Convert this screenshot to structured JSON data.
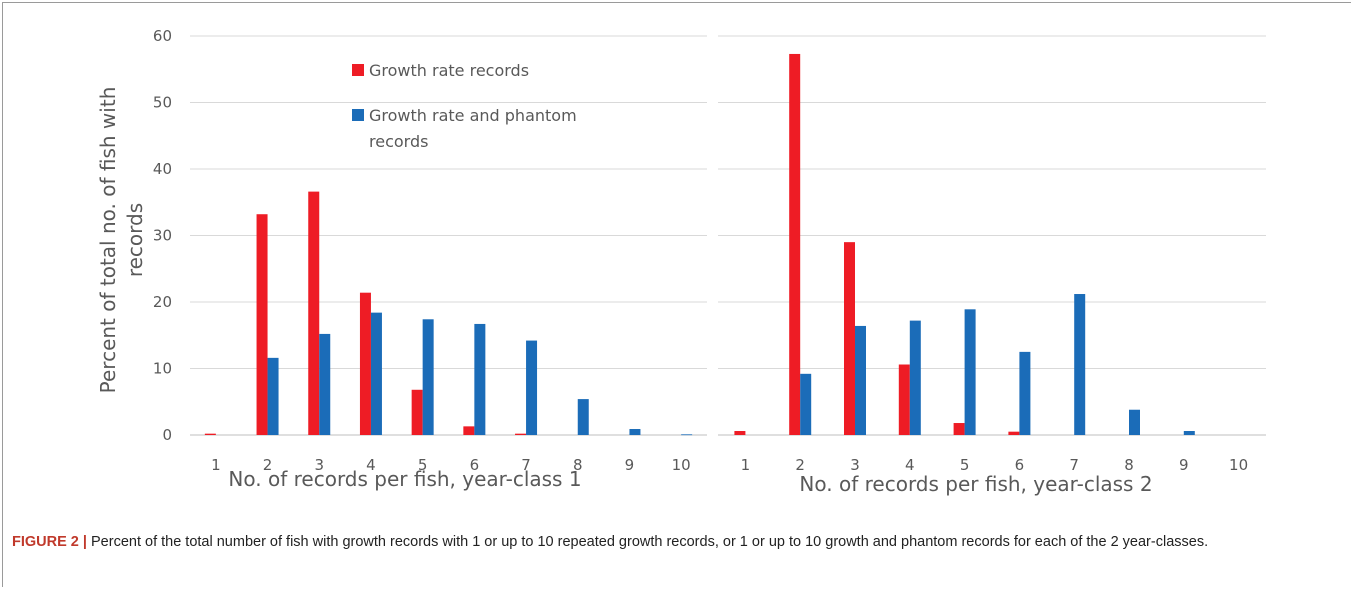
{
  "chart_data": [
    {
      "type": "bar",
      "xlabel": "No. of records per fish, year-class 1",
      "ylabel": "Percent of total no. of fish with records",
      "categories": [
        "1",
        "2",
        "3",
        "4",
        "5",
        "6",
        "7",
        "8",
        "9",
        "10"
      ],
      "ylim": [
        0,
        60
      ],
      "yticks": [
        0,
        10,
        20,
        30,
        40,
        50,
        60
      ],
      "grid": "horizontal",
      "legend": "top-left",
      "series": [
        {
          "name": "Growth rate records",
          "color": "#ee1c25",
          "values": [
            0.2,
            33.2,
            36.6,
            21.4,
            6.8,
            1.3,
            0.2,
            0,
            0,
            0
          ]
        },
        {
          "name": "Growth rate and phantom records",
          "color": "#1b6cb8",
          "values": [
            0,
            11.6,
            15.2,
            18.4,
            17.4,
            16.7,
            14.2,
            5.4,
            0.9,
            0.1
          ]
        }
      ]
    },
    {
      "type": "bar",
      "xlabel": "No. of records per fish, year-class 2",
      "categories": [
        "1",
        "2",
        "3",
        "4",
        "5",
        "6",
        "7",
        "8",
        "9",
        "10"
      ],
      "ylim": [
        0,
        60
      ],
      "grid": "horizontal",
      "series": [
        {
          "name": "Growth rate records",
          "color": "#ee1c25",
          "values": [
            0.6,
            57.3,
            29.0,
            10.6,
            1.8,
            0.5,
            0,
            0,
            0,
            0
          ]
        },
        {
          "name": "Growth rate and phantom records",
          "color": "#1b6cb8",
          "values": [
            0,
            9.2,
            16.4,
            17.2,
            18.9,
            12.5,
            21.2,
            3.8,
            0.6,
            0
          ]
        }
      ]
    }
  ],
  "legend": {
    "items": [
      "Growth rate records",
      "Growth rate and phantom records"
    ]
  },
  "caption": {
    "label": "FIGURE 2 |",
    "text": "Percent of the total number of fish with growth records with 1 or up to 10 repeated growth records, or 1 or up to 10 growth and phantom records for each of the 2 year-classes."
  }
}
